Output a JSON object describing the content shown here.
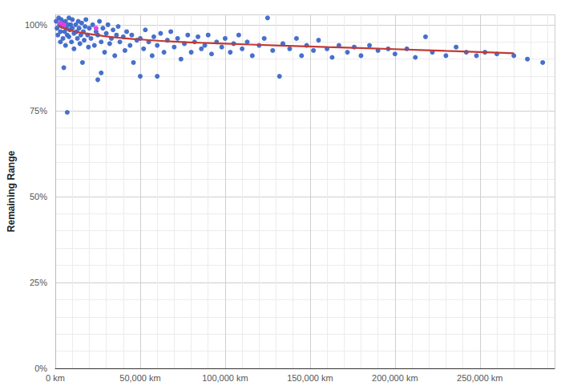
{
  "chart_data": {
    "type": "scatter",
    "y_label": "Remaining Range",
    "xlim": [
      0,
      294000
    ],
    "xticks": [
      {
        "value": 0,
        "label": "0 km"
      },
      {
        "value": 50000,
        "label": "50,000 km"
      },
      {
        "value": 100000,
        "label": "100,000 km"
      },
      {
        "value": 150000,
        "label": "150,000 km"
      },
      {
        "value": 200000,
        "label": "200,000 km"
      },
      {
        "value": 250000,
        "label": "250,000 km"
      }
    ],
    "ylim": [
      0,
      103
    ],
    "yticks": [
      {
        "value": 0,
        "label": "0%"
      },
      {
        "value": 25,
        "label": "25%"
      },
      {
        "value": 50,
        "label": "50%"
      },
      {
        "value": 75,
        "label": "75%"
      },
      {
        "value": 100,
        "label": "100%"
      }
    ],
    "grid": true,
    "series": [
      {
        "type": "scatter",
        "color": "#3d68c9",
        "marker": "circle",
        "x": [
          500,
          1000,
          1500,
          2000,
          2500,
          3000,
          3000,
          3500,
          4000,
          4500,
          5000,
          5000,
          5500,
          6000,
          6000,
          6500,
          7000,
          7000,
          7500,
          8000,
          8000,
          8500,
          9000,
          9500,
          10000,
          10000,
          11000,
          11000,
          12000,
          12500,
          13000,
          13500,
          14000,
          14500,
          15000,
          15500,
          16000,
          16500,
          17000,
          17500,
          18000,
          19000,
          19500,
          20000,
          21000,
          22000,
          23000,
          24000,
          25000,
          25000,
          26000,
          27000,
          27000,
          28000,
          29000,
          30000,
          31000,
          32000,
          33000,
          34000,
          35000,
          36000,
          37000,
          38000,
          40000,
          41000,
          42000,
          44000,
          45000,
          46000,
          48000,
          50000,
          50000,
          52000,
          53000,
          55000,
          57000,
          58000,
          60000,
          60000,
          62000,
          64000,
          66000,
          68000,
          70000,
          72000,
          74000,
          76000,
          78000,
          80000,
          82000,
          84000,
          86000,
          88000,
          90000,
          92000,
          95000,
          98000,
          100000,
          103000,
          105000,
          108000,
          110000,
          113000,
          116000,
          120000,
          123000,
          125000,
          128000,
          132000,
          134000,
          138000,
          142000,
          145000,
          148000,
          152000,
          155000,
          160000,
          163000,
          167000,
          172000,
          176000,
          180000,
          185000,
          190000,
          196000,
          200000,
          207000,
          212000,
          218000,
          222000,
          230000,
          236000,
          242000,
          248000,
          253000,
          260000,
          270000,
          278000,
          287000
        ],
        "values": [
          101,
          99,
          97,
          102,
          100,
          98,
          95,
          101.5,
          99.5,
          96,
          87.5,
          100.5,
          98,
          101,
          94,
          99,
          74.5,
          97,
          100,
          102,
          96.5,
          98.5,
          100,
          95,
          99,
          101.5,
          97.5,
          93,
          100,
          98,
          96,
          101,
          99,
          94.5,
          97,
          100.5,
          89,
          98,
          95.5,
          99.5,
          101.5,
          97,
          93.5,
          99,
          96,
          100,
          94,
          98,
          84,
          97,
          101,
          86,
          95,
          99,
          92,
          97.5,
          100,
          94.5,
          96,
          98.5,
          91,
          97,
          99.5,
          95,
          96.5,
          92.5,
          98,
          94,
          97,
          89,
          95.5,
          85,
          96,
          93,
          98.5,
          95,
          91,
          96.5,
          85,
          94,
          97.5,
          92,
          95.5,
          98,
          93.5,
          96,
          90,
          94.5,
          97,
          92,
          95,
          96.5,
          93,
          94,
          97,
          91.5,
          95,
          93.5,
          96,
          92,
          94.5,
          97,
          93,
          95,
          91,
          94,
          96,
          102,
          92.5,
          85,
          94.5,
          93,
          96,
          91,
          94,
          92.5,
          95.5,
          93,
          90.5,
          94,
          92,
          93.5,
          91,
          94,
          92.5,
          93,
          91.5,
          93,
          90.5,
          96.5,
          92,
          91,
          93.5,
          92,
          91,
          92,
          91.5,
          91,
          90,
          89
        ]
      },
      {
        "type": "line",
        "color": "#c23a35",
        "line_style": "solid",
        "x": [
          2000,
          5000,
          10000,
          20000,
          30000,
          40000,
          50000,
          70000,
          100000,
          130000,
          160000,
          200000,
          230000,
          270000
        ],
        "values": [
          99.6,
          99,
          98.2,
          97.3,
          96.6,
          96.1,
          95.7,
          95.1,
          94.5,
          94.0,
          93.5,
          92.9,
          92.4,
          91.7
        ]
      },
      {
        "type": "scatter",
        "color": "#e040e0",
        "marker": "circle",
        "x": [
          3000,
          5000,
          24000
        ],
        "values": [
          100.5,
          100,
          99
        ]
      }
    ]
  }
}
